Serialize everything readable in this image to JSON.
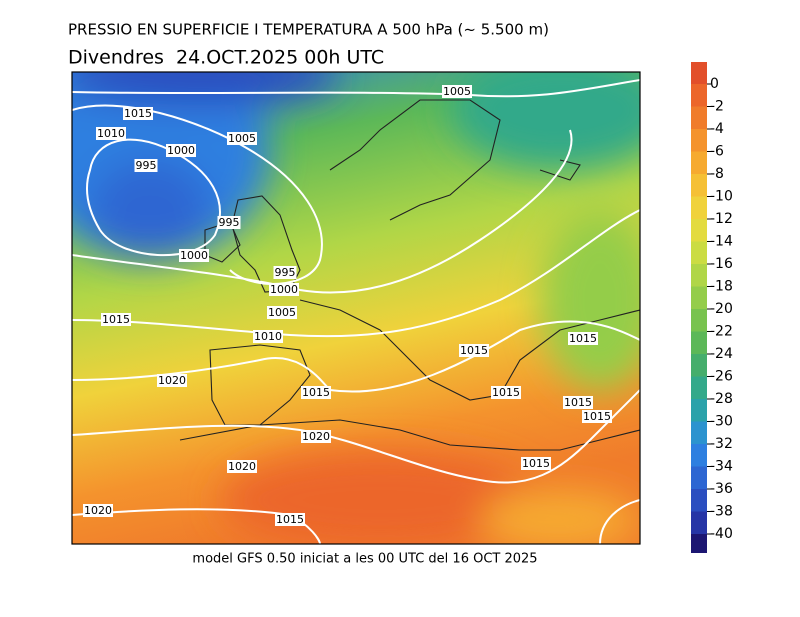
{
  "header": {
    "title": "PRESSIO EN SUPERFICIE I TEMPERATURA A 500 hPa (~ 5.500 m)",
    "subtitle": "Divendres  24.OCT.2025 00h UTC"
  },
  "footer": "model GFS 0.50 iniciat a les 00 UTC del 16 OCT 2025",
  "colorbar": {
    "labels": [
      0,
      -2,
      -4,
      -6,
      -8,
      -10,
      -12,
      -14,
      -16,
      -18,
      -20,
      -22,
      -24,
      -26,
      -28,
      -30,
      -32,
      -34,
      -36,
      -38,
      -40
    ],
    "colors": [
      "#e24f2a",
      "#ec662a",
      "#f07c2b",
      "#f4932d",
      "#f6aa30",
      "#f5c035",
      "#f0d23b",
      "#e3db3f",
      "#cbdc43",
      "#b0d647",
      "#94cd4a",
      "#78c34e",
      "#5cb858",
      "#45ae6c",
      "#33a98a",
      "#2aa2aa",
      "#2c93cf",
      "#2e7fe0",
      "#2d66d2",
      "#2b4ec0",
      "#2635a6",
      "#1c1672"
    ]
  },
  "isobar_labels": [
    1005,
    1015,
    1010,
    1005,
    1000,
    995,
    995,
    1000,
    995,
    1000,
    1005,
    1015,
    1010,
    1015,
    1015,
    1020,
    1015,
    1015,
    1015,
    1015,
    1020,
    1015,
    1020,
    1020,
    1015
  ]
}
